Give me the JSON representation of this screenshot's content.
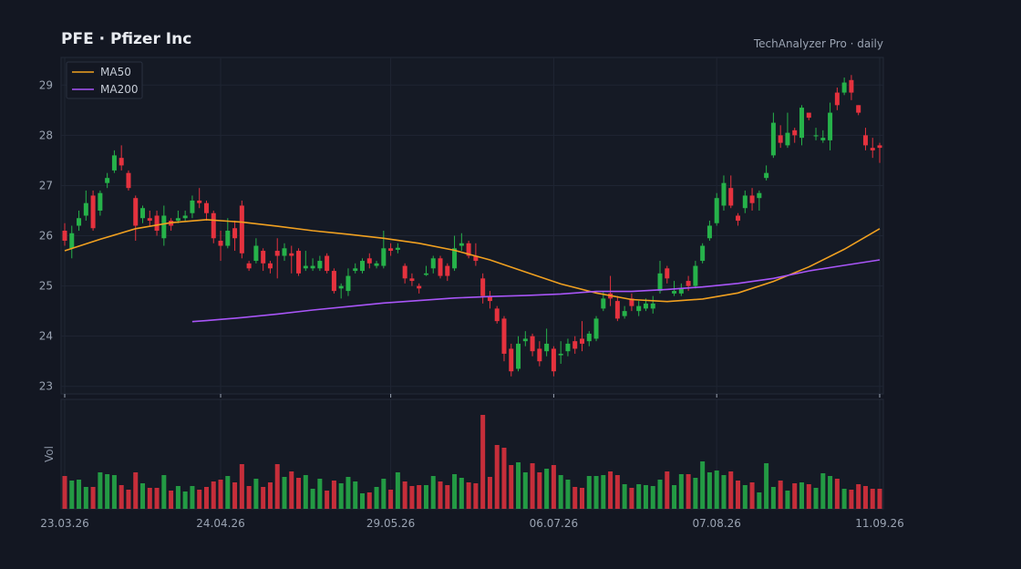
{
  "chart_data": {
    "type": "candlestick",
    "title": "PFE  ·  Pfizer Inc",
    "subtitle": "TechAnalyzer Pro · daily",
    "volume_label": "Vol",
    "up_color": "#26b24a",
    "down_color": "#e5323e",
    "grid": true,
    "legend": "upper left",
    "ylim": [
      22.85,
      29.55
    ],
    "yticks": [
      23,
      24,
      25,
      26,
      27,
      28,
      29
    ],
    "volume_ylim": [
      0,
      110
    ],
    "categories": [
      "23.03.26",
      null,
      null,
      null,
      null,
      null,
      null,
      null,
      null,
      null,
      null,
      null,
      null,
      null,
      null,
      null,
      null,
      null,
      null,
      null,
      null,
      null,
      "24.04.26",
      null,
      null,
      null,
      null,
      null,
      null,
      null,
      null,
      null,
      null,
      null,
      null,
      null,
      null,
      null,
      null,
      null,
      null,
      null,
      null,
      null,
      null,
      null,
      "29.05.26",
      null,
      null,
      null,
      null,
      null,
      null,
      null,
      null,
      null,
      null,
      null,
      null,
      null,
      null,
      null,
      null,
      null,
      null,
      null,
      null,
      null,
      null,
      "06.07.26",
      null,
      null,
      null,
      null,
      null,
      null,
      null,
      null,
      null,
      null,
      null,
      null,
      null,
      null,
      null,
      null,
      null,
      null,
      null,
      null,
      null,
      null,
      "07.08.26",
      null,
      null,
      null,
      null,
      null,
      null,
      null,
      null,
      null,
      null,
      null,
      null,
      null,
      null,
      null,
      null,
      null,
      null,
      null,
      null,
      null,
      null,
      "11.09.26"
    ],
    "open": [
      26.1,
      25.75,
      26.2,
      26.4,
      26.8,
      26.5,
      27.05,
      27.3,
      27.55,
      27.25,
      26.75,
      26.35,
      26.35,
      26.4,
      25.95,
      26.3,
      26.3,
      26.35,
      26.45,
      26.7,
      26.65,
      26.45,
      25.9,
      25.8,
      26.15,
      26.6,
      25.45,
      25.5,
      25.7,
      25.45,
      25.7,
      25.6,
      25.65,
      25.7,
      25.35,
      25.35,
      25.35,
      25.6,
      25.3,
      24.95,
      24.9,
      25.3,
      25.3,
      25.55,
      25.4,
      25.4,
      25.75,
      25.72,
      25.4,
      25.15,
      25.0,
      25.22,
      25.35,
      25.55,
      25.4,
      25.35,
      25.8,
      25.85,
      25.6,
      25.15,
      24.8,
      24.55,
      24.35,
      23.75,
      23.35,
      23.9,
      24.0,
      23.75,
      23.7,
      23.75,
      23.62,
      23.7,
      23.9,
      23.95,
      23.9,
      23.95,
      24.55,
      24.85,
      24.7,
      24.4,
      24.75,
      24.5,
      24.55,
      24.55,
      24.9,
      25.35,
      24.85,
      24.85,
      25.1,
      25.0,
      25.5,
      25.95,
      26.25,
      26.6,
      26.95,
      26.4,
      26.55,
      26.8,
      26.75,
      27.15,
      27.6,
      28.0,
      27.8,
      28.1,
      27.95,
      28.45,
      27.98,
      27.9,
      27.9,
      28.85,
      28.85,
      29.1,
      28.6,
      28.0,
      27.75,
      27.8
    ],
    "high": [
      26.25,
      26.2,
      26.5,
      26.9,
      26.9,
      26.9,
      27.25,
      27.7,
      27.8,
      27.3,
      26.8,
      26.6,
      26.5,
      26.5,
      26.6,
      26.35,
      26.5,
      26.5,
      26.8,
      26.95,
      26.7,
      26.5,
      26.1,
      26.35,
      26.3,
      26.7,
      25.5,
      25.95,
      25.75,
      25.5,
      25.95,
      25.85,
      25.8,
      25.75,
      25.7,
      25.55,
      25.6,
      25.65,
      25.35,
      25.05,
      25.35,
      25.45,
      25.55,
      25.65,
      25.5,
      26.1,
      25.85,
      25.85,
      25.45,
      25.25,
      25.05,
      25.4,
      25.6,
      25.6,
      25.45,
      26.0,
      26.05,
      25.9,
      25.85,
      25.25,
      24.9,
      24.6,
      24.4,
      23.85,
      24.0,
      24.1,
      24.05,
      23.9,
      24.15,
      23.8,
      23.9,
      23.95,
      24.0,
      24.3,
      24.1,
      24.4,
      24.9,
      25.2,
      24.8,
      24.6,
      24.85,
      24.7,
      24.75,
      24.8,
      25.5,
      25.4,
      25.1,
      25.05,
      25.2,
      25.5,
      25.85,
      26.3,
      26.85,
      27.2,
      27.2,
      26.45,
      26.9,
      26.95,
      26.9,
      27.4,
      28.45,
      28.2,
      28.45,
      28.15,
      28.6,
      28.45,
      28.15,
      28.1,
      28.65,
      28.95,
      29.15,
      29.2,
      28.6,
      28.15,
      27.95,
      27.85
    ],
    "low": [
      25.8,
      25.55,
      26.1,
      26.3,
      26.1,
      26.4,
      26.95,
      27.25,
      27.3,
      26.9,
      25.9,
      26.25,
      26.2,
      26.0,
      25.8,
      26.1,
      26.25,
      26.3,
      26.35,
      26.55,
      26.3,
      25.85,
      25.5,
      25.75,
      25.7,
      25.55,
      25.3,
      25.45,
      25.3,
      25.25,
      25.15,
      25.5,
      25.25,
      25.2,
      25.3,
      25.3,
      25.3,
      25.25,
      24.85,
      24.75,
      24.8,
      25.25,
      25.25,
      25.35,
      25.35,
      25.35,
      25.6,
      25.65,
      25.05,
      25.0,
      24.85,
      25.2,
      25.25,
      25.15,
      25.1,
      25.3,
      25.7,
      25.55,
      25.4,
      24.65,
      24.55,
      24.25,
      23.5,
      23.2,
      23.3,
      23.8,
      23.6,
      23.4,
      23.6,
      23.2,
      23.45,
      23.6,
      23.65,
      23.7,
      23.8,
      23.9,
      24.5,
      24.6,
      24.3,
      24.35,
      24.5,
      24.4,
      24.5,
      24.45,
      24.85,
      25.05,
      24.8,
      24.8,
      24.9,
      24.95,
      25.45,
      25.9,
      26.2,
      26.5,
      26.55,
      26.2,
      26.45,
      26.5,
      26.5,
      27.1,
      27.55,
      27.75,
      27.75,
      27.85,
      27.8,
      28.3,
      27.9,
      27.85,
      27.7,
      28.5,
      28.8,
      28.7,
      28.4,
      27.7,
      27.55,
      27.45
    ],
    "close": [
      25.9,
      26.05,
      26.35,
      26.65,
      26.15,
      26.85,
      27.15,
      27.6,
      27.4,
      26.95,
      26.2,
      26.55,
      26.3,
      26.1,
      26.4,
      26.2,
      26.35,
      26.4,
      26.7,
      26.65,
      26.45,
      25.95,
      25.8,
      26.1,
      25.95,
      25.65,
      25.35,
      25.8,
      25.45,
      25.35,
      25.6,
      25.75,
      25.6,
      25.25,
      25.4,
      25.4,
      25.5,
      25.3,
      24.9,
      25.0,
      25.2,
      25.35,
      25.5,
      25.45,
      25.45,
      25.75,
      25.7,
      25.76,
      25.15,
      25.1,
      24.95,
      25.25,
      25.55,
      25.2,
      25.2,
      25.75,
      25.85,
      25.6,
      25.5,
      24.8,
      24.7,
      24.3,
      23.65,
      23.3,
      23.85,
      23.95,
      23.7,
      23.5,
      23.85,
      23.3,
      23.65,
      23.85,
      23.75,
      23.85,
      24.05,
      24.35,
      24.75,
      24.75,
      24.35,
      24.5,
      24.6,
      24.6,
      24.65,
      24.65,
      25.25,
      25.15,
      24.9,
      24.95,
      25.0,
      25.4,
      25.8,
      26.2,
      26.75,
      27.05,
      26.6,
      26.3,
      26.8,
      26.65,
      26.85,
      27.25,
      28.25,
      27.85,
      28.05,
      28.0,
      28.55,
      28.35,
      28.0,
      27.95,
      28.45,
      28.6,
      29.05,
      28.85,
      28.45,
      27.8,
      27.7,
      27.75
    ],
    "volume": [
      36,
      31,
      32,
      24,
      24,
      40,
      38,
      37,
      26,
      21,
      40,
      28,
      23,
      23,
      37,
      20,
      25,
      19,
      25,
      21,
      24,
      30,
      32,
      36,
      29,
      49,
      25,
      33,
      24,
      29,
      49,
      35,
      41,
      34,
      37,
      22,
      33,
      20,
      31,
      28,
      35,
      30,
      17,
      18,
      24,
      33,
      21,
      40,
      30,
      25,
      26,
      26,
      36,
      30,
      26,
      38,
      34,
      29,
      28,
      103,
      35,
      70,
      67,
      48,
      51,
      40,
      50,
      40,
      44,
      48,
      37,
      32,
      24,
      23,
      36,
      36,
      37,
      41,
      37,
      27,
      23,
      27,
      26,
      25,
      32,
      41,
      26,
      38,
      38,
      34,
      52,
      40,
      42,
      37,
      41,
      31,
      26,
      29,
      18,
      50,
      24,
      31,
      20,
      28,
      29,
      27,
      23,
      39,
      36,
      33,
      22,
      21,
      27,
      25,
      22,
      22
    ],
    "series": [
      {
        "name": "MA50",
        "color": "#f0a020",
        "x": [
          0,
          5,
          10,
          15,
          20,
          25,
          30,
          35,
          40,
          45,
          50,
          55,
          60,
          65,
          70,
          75,
          80,
          85,
          90,
          95,
          100,
          105,
          110,
          115
        ],
        "values": [
          25.7,
          25.93,
          26.14,
          26.26,
          26.32,
          26.27,
          26.19,
          26.1,
          26.03,
          25.95,
          25.85,
          25.71,
          25.52,
          25.28,
          25.04,
          24.86,
          24.73,
          24.69,
          24.74,
          24.86,
          25.09,
          25.38,
          25.73,
          26.14
        ]
      },
      {
        "name": "MA200",
        "color": "#a855f7",
        "x": [
          18,
          20,
          25,
          30,
          35,
          40,
          45,
          50,
          55,
          60,
          65,
          70,
          75,
          80,
          85,
          90,
          95,
          100,
          105,
          110,
          115
        ],
        "values": [
          24.29,
          24.31,
          24.37,
          24.44,
          24.52,
          24.59,
          24.66,
          24.71,
          24.76,
          24.79,
          24.81,
          24.84,
          24.89,
          24.89,
          24.93,
          24.98,
          25.05,
          25.15,
          25.3,
          25.41,
          25.52
        ]
      }
    ]
  }
}
